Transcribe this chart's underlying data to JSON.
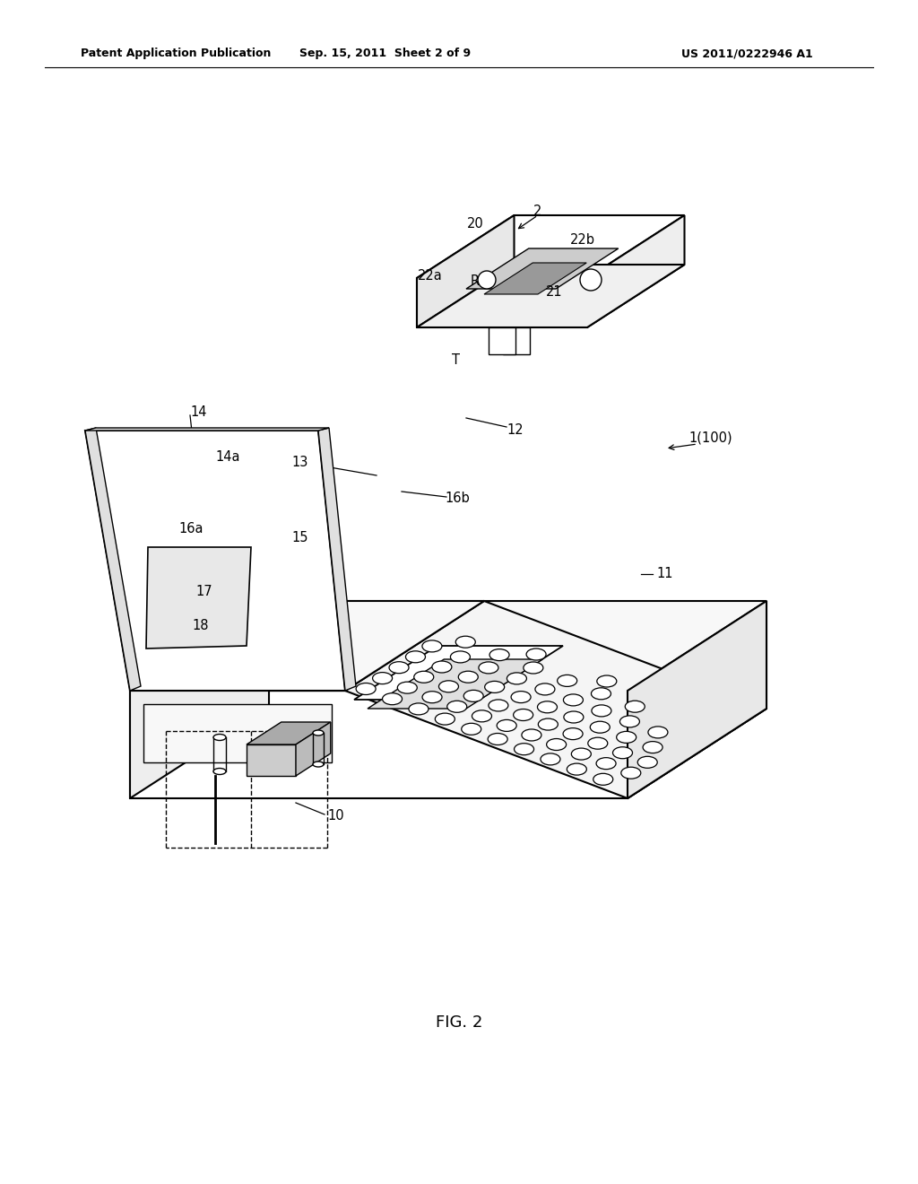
{
  "bg_color": "#ffffff",
  "header_left": "Patent Application Publication",
  "header_mid": "Sep. 15, 2011  Sheet 2 of 9",
  "header_right": "US 2011/0222946 A1",
  "figure_label": "FIG. 2"
}
